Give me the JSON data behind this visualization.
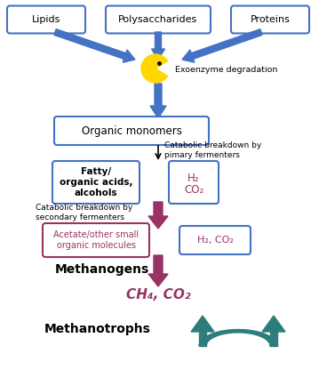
{
  "bg_color": "#ffffff",
  "blue_box_color": "#4472C4",
  "blue_arrow_color": "#4472C4",
  "pink_arrow_color": "#993366",
  "teal_color": "#2E7D7D",
  "pacman_color": "#FFD700",
  "text_color": "#333333",
  "pink_text_color": "#993366",
  "lipids_label": "Lipids",
  "polysaccharides_label": "Polysaccharides",
  "proteins_label": "Proteins",
  "exoenzyme_label": "Exoenzyme degradation",
  "organic_monomers_label": "Organic monomers",
  "catabolic1_label": "Catabolic breakdown by\npimary fermenters",
  "fatty_label": "Fatty/\norganic acids,\nalcohols",
  "h2co2_label1a": "H₂",
  "h2co2_label1b": "CO₂",
  "catabolic2_label": "Catabolic breakdown by\nsecondary fermenters",
  "acetate_label": "Acetate/other small\norganic molecules",
  "h2co2_label2": "H₂, CO₂",
  "methanogens_label": "Methanogens",
  "ch4co2_label": "CH₄, CO₂",
  "methanotrophs_label": "Methanotrophs"
}
